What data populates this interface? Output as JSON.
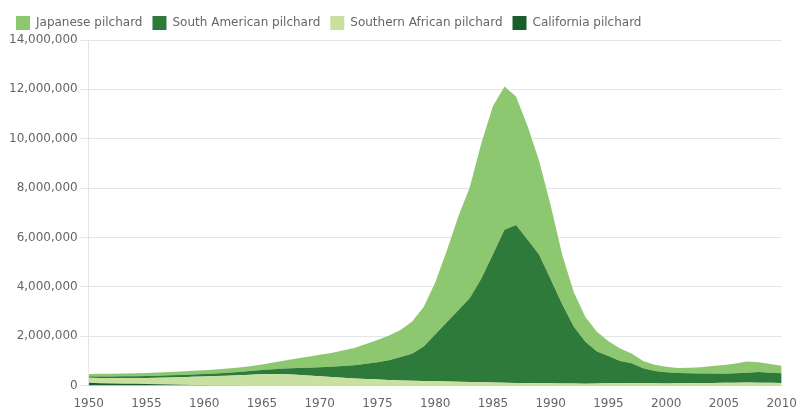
{
  "chart_data": {
    "type": "area",
    "stacked": true,
    "x": [
      1950,
      1951,
      1952,
      1953,
      1954,
      1955,
      1956,
      1957,
      1958,
      1959,
      1960,
      1961,
      1962,
      1963,
      1964,
      1965,
      1966,
      1967,
      1968,
      1969,
      1970,
      1971,
      1972,
      1973,
      1974,
      1975,
      1976,
      1977,
      1978,
      1979,
      1980,
      1981,
      1982,
      1983,
      1984,
      1985,
      1986,
      1987,
      1988,
      1989,
      1990,
      1991,
      1992,
      1993,
      1994,
      1995,
      1996,
      1997,
      1998,
      1999,
      2000,
      2001,
      2002,
      2003,
      2004,
      2005,
      2006,
      2007,
      2008,
      2009,
      2010
    ],
    "series": [
      {
        "name": "California pilchard",
        "color": "#1a5c2a",
        "values": [
          120000,
          100000,
          90000,
          80000,
          70000,
          60000,
          50000,
          40000,
          30000,
          25000,
          20000,
          15000,
          12000,
          10000,
          8000,
          7000,
          6000,
          5000,
          5000,
          5000,
          5000,
          5000,
          5000,
          5000,
          5000,
          5000,
          5000,
          5000,
          5000,
          5000,
          5000,
          5000,
          5000,
          5000,
          5000,
          5000,
          5000,
          5000,
          5000,
          5000,
          5000,
          5000,
          5000,
          5000,
          5000,
          5000,
          5000,
          5000,
          5000,
          5000,
          5000,
          5000,
          5000,
          5000,
          5000,
          5000,
          5000,
          5000,
          5000,
          5000,
          5000
        ]
      },
      {
        "name": "Southern African pilchard",
        "color": "#c8e0a0",
        "values": [
          200000,
          210000,
          220000,
          230000,
          240000,
          250000,
          270000,
          290000,
          310000,
          330000,
          350000,
          370000,
          390000,
          410000,
          430000,
          450000,
          460000,
          450000,
          430000,
          400000,
          370000,
          340000,
          310000,
          280000,
          260000,
          240000,
          220000,
          200000,
          190000,
          180000,
          170000,
          160000,
          150000,
          140000,
          130000,
          120000,
          110000,
          105000,
          100000,
          95000,
          90000,
          85000,
          80000,
          75000,
          80000,
          90000,
          95000,
          100000,
          95000,
          90000,
          85000,
          90000,
          95000,
          100000,
          105000,
          110000,
          115000,
          120000,
          115000,
          110000,
          105000
        ]
      },
      {
        "name": "South American pilchard",
        "color": "#2d7a3a",
        "values": [
          50000,
          55000,
          60000,
          65000,
          70000,
          75000,
          80000,
          85000,
          90000,
          95000,
          100000,
          110000,
          120000,
          130000,
          150000,
          170000,
          200000,
          240000,
          280000,
          320000,
          370000,
          420000,
          480000,
          540000,
          620000,
          700000,
          800000,
          950000,
          1100000,
          1400000,
          1900000,
          2400000,
          2900000,
          3400000,
          4200000,
          5200000,
          6200000,
          6400000,
          5800000,
          5200000,
          4200000,
          3200000,
          2300000,
          1700000,
          1300000,
          1100000,
          900000,
          800000,
          600000,
          500000,
          450000,
          420000,
          400000,
          390000,
          380000,
          370000,
          380000,
          400000,
          430000,
          410000,
          390000
        ]
      },
      {
        "name": "Japanese pilchard",
        "color": "#8dc870",
        "values": [
          100000,
          110000,
          115000,
          120000,
          125000,
          130000,
          135000,
          140000,
          145000,
          150000,
          155000,
          160000,
          170000,
          180000,
          200000,
          230000,
          270000,
          320000,
          380000,
          440000,
          500000,
          560000,
          630000,
          700000,
          800000,
          900000,
          1000000,
          1100000,
          1300000,
          1600000,
          2100000,
          2900000,
          3800000,
          4500000,
          5500000,
          6000000,
          5800000,
          5200000,
          4600000,
          3800000,
          3000000,
          2000000,
          1400000,
          1000000,
          800000,
          600000,
          500000,
          400000,
          300000,
          250000,
          220000,
          200000,
          220000,
          250000,
          300000,
          350000,
          400000,
          450000,
          400000,
          350000,
          300000
        ]
      }
    ],
    "xlim": [
      1950,
      2010
    ],
    "xticks": [
      1950,
      1955,
      1960,
      1965,
      1970,
      1975,
      1980,
      1985,
      1990,
      1995,
      2000,
      2005,
      2010
    ],
    "ylim": [
      0,
      14000000
    ],
    "yticks": [
      0,
      {
        "value": 2000000,
        "label": "2,000,000"
      },
      {
        "value": 4000000,
        "label": "4,000,000"
      },
      {
        "value": 6000000,
        "label": "6,000,000"
      },
      {
        "value": 8000000,
        "label": "8,000,000"
      },
      {
        "value": 10000000,
        "label": "10,000,000"
      },
      {
        "value": 12000000,
        "label": "12,000,000"
      },
      {
        "value": 14000000,
        "label": "14,000,000"
      }
    ],
    "grid": "y",
    "legend": "upper left"
  }
}
